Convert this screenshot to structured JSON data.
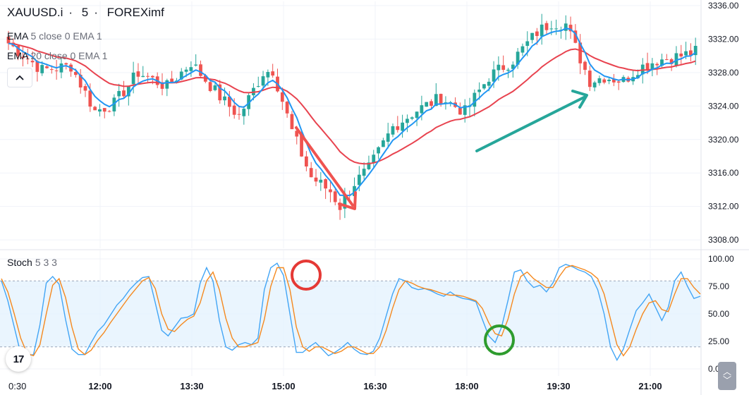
{
  "header": {
    "symbol": "XAUUSD.i",
    "interval": "5",
    "broker": "FOREXimf"
  },
  "indicators": [
    {
      "name": "EMA",
      "params": "5 close 0 EMA 1",
      "color": "#2196f3"
    },
    {
      "name": "EMA",
      "params": "20 close 0 EMA 1",
      "color": "#e8434f"
    }
  ],
  "stoch_label": {
    "name": "Stoch",
    "params": "5 3 3"
  },
  "chart_data": [
    {
      "type": "candlestick",
      "symbol": "XAUUSD.i",
      "price_ticks": [
        3308,
        3312,
        3316,
        3320,
        3324,
        3328,
        3332,
        3336
      ],
      "price_tick_labels": [
        "3308.00",
        "3312.00",
        "3316.00",
        "3320.00",
        "3324.00",
        "3328.00",
        "3332.00",
        "3336.00"
      ],
      "ylim": [
        3307,
        3336.5
      ],
      "x_tick_labels": [
        "0:30",
        "12:00",
        "13:30",
        "15:00",
        "16:30",
        "18:00",
        "19:30",
        "21:00"
      ],
      "candles_count": 144,
      "close_path": [
        [
          0,
          3331.5
        ],
        [
          7,
          3328.3
        ],
        [
          13,
          3328.8
        ],
        [
          18,
          3323.4
        ],
        [
          22,
          3324.3
        ],
        [
          27,
          3328.0
        ],
        [
          33,
          3326.3
        ],
        [
          38,
          3329.2
        ],
        [
          44,
          3325.1
        ],
        [
          48,
          3322.8
        ],
        [
          53,
          3328.0
        ],
        [
          55,
          3328.3
        ],
        [
          59,
          3321.0
        ],
        [
          63,
          3315.5
        ],
        [
          67,
          3313.8
        ],
        [
          69,
          3312.0
        ],
        [
          72,
          3314.8
        ],
        [
          75,
          3316.5
        ],
        [
          80,
          3321.5
        ],
        [
          85,
          3323.5
        ],
        [
          90,
          3325.0
        ],
        [
          95,
          3323.3
        ],
        [
          100,
          3327.5
        ],
        [
          105,
          3329.5
        ],
        [
          110,
          3332.8
        ],
        [
          113,
          3334.0
        ],
        [
          116,
          3333.8
        ],
        [
          118,
          3331.0
        ],
        [
          121,
          3327.0
        ],
        [
          124,
          3327.5
        ],
        [
          128,
          3327.0
        ],
        [
          131,
          3328.5
        ],
        [
          135,
          3329.5
        ],
        [
          140,
          3330.0
        ],
        [
          143,
          3330.5
        ]
      ],
      "series": [
        {
          "name": "EMA 5 close 0 EMA 1",
          "color": "#2196f3"
        },
        {
          "name": "EMA 20 close 0 EMA 1",
          "color": "#e8434f"
        }
      ],
      "up_color": "#26a69a",
      "down_color": "#ef5350"
    },
    {
      "type": "line",
      "name": "Stoch 5 3 3",
      "ylim": [
        0,
        100
      ],
      "y_ticks": [
        0,
        25,
        50,
        75,
        100
      ],
      "y_tick_labels": [
        "0.00",
        "25.00",
        "50.00",
        "75.00",
        "100.00"
      ],
      "band": [
        20,
        80
      ],
      "band_color": "#e3f2fd",
      "series": [
        {
          "name": "%K",
          "color": "#42a5f5",
          "values": [
            80,
            62,
            38,
            14,
            12,
            13,
            40,
            78,
            84,
            77,
            45,
            18,
            13,
            13,
            24,
            34,
            40,
            49,
            58,
            64,
            72,
            78,
            83,
            84,
            60,
            35,
            30,
            38,
            46,
            47,
            50,
            78,
            92,
            80,
            44,
            20,
            17,
            22,
            24,
            22,
            28,
            72,
            92,
            96,
            85,
            50,
            15,
            15,
            20,
            24,
            18,
            12,
            15,
            19,
            24,
            18,
            14,
            13,
            16,
            28,
            48,
            68,
            82,
            80,
            74,
            72,
            73,
            71,
            68,
            66,
            70,
            66,
            64,
            63,
            61,
            45,
            30,
            24,
            38,
            62,
            88,
            90,
            80,
            74,
            76,
            70,
            78,
            92,
            95,
            93,
            90,
            88,
            84,
            72,
            50,
            20,
            8,
            18,
            36,
            53,
            60,
            68,
            56,
            44,
            56,
            80,
            88,
            75,
            64,
            66
          ]
        },
        {
          "name": "%D",
          "color": "#f5891f",
          "values": [
            82,
            70,
            50,
            28,
            14,
            12,
            22,
            50,
            76,
            82,
            65,
            38,
            18,
            13,
            17,
            26,
            33,
            42,
            50,
            58,
            66,
            73,
            80,
            83,
            73,
            50,
            36,
            34,
            40,
            45,
            48,
            60,
            80,
            88,
            72,
            46,
            28,
            20,
            20,
            22,
            24,
            45,
            75,
            92,
            92,
            72,
            38,
            20,
            16,
            20,
            20,
            17,
            14,
            16,
            20,
            20,
            17,
            14,
            14,
            20,
            35,
            55,
            72,
            80,
            78,
            75,
            73,
            72,
            70,
            68,
            67,
            67,
            66,
            64,
            62,
            55,
            42,
            32,
            30,
            45,
            68,
            84,
            88,
            82,
            78,
            74,
            74,
            84,
            92,
            94,
            92,
            90,
            87,
            82,
            68,
            45,
            22,
            12,
            20,
            36,
            50,
            60,
            62,
            54,
            52,
            68,
            82,
            82,
            74,
            68
          ]
        }
      ]
    }
  ],
  "annotation_colors": {
    "down_arrow": "#ef5350",
    "up_arrow": "#26a69a",
    "top_circle": "#e53935",
    "bottom_circle": "#2e9c2e"
  },
  "logo_text": "17"
}
